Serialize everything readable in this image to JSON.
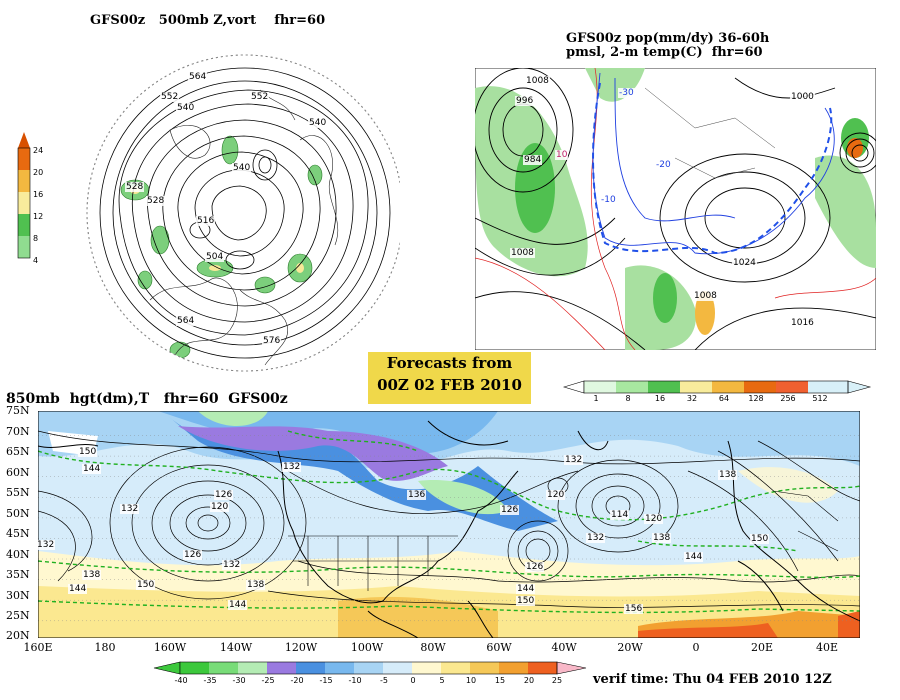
{
  "panel_tl": {
    "title": "GFS00z   500mb Z,vort    fhr=60",
    "contour_labels": [
      "564",
      "552",
      "540",
      "516",
      "528",
      "540",
      "552",
      "564",
      "576",
      "504",
      "540",
      "528"
    ],
    "colorbar": {
      "ticks": [
        "24",
        "20",
        "16",
        "12",
        "8",
        "4"
      ],
      "colors": [
        "#e86a10",
        "#f3b840",
        "#f8ec9c",
        "#50c050",
        "#90dc90",
        "#c8f0c8"
      ]
    }
  },
  "panel_tr": {
    "title_line1": "GFS00z pop(mm/dy) 36-60h",
    "title_line2": "pmsl, 2-m temp(C)  fhr=60",
    "isobar_labels": [
      "1008",
      "996",
      "984",
      "1008",
      "1008",
      "1024",
      "1000",
      "1016"
    ],
    "temp_labels": [
      "-30",
      "-20",
      "-10",
      "10"
    ],
    "colorbar": {
      "ticks": [
        "1",
        "8",
        "16",
        "32",
        "64",
        "128",
        "256",
        "512"
      ],
      "colors": [
        "#e0f8e0",
        "#a8e8a0",
        "#50c050",
        "#f8ec9c",
        "#f3b840",
        "#e86a10",
        "#f06030",
        "#d8f0f8"
      ]
    }
  },
  "info_box": {
    "line1": "Forecasts from",
    "line2": "00Z  02  FEB  2010"
  },
  "panel_bottom": {
    "title": "850mb  hgt(dm),T   fhr=60  GFS00z",
    "lat_labels": [
      "75N",
      "70N",
      "65N",
      "60N",
      "55N",
      "50N",
      "45N",
      "40N",
      "35N",
      "30N",
      "25N",
      "20N"
    ],
    "lon_labels": [
      "160E",
      "180",
      "160W",
      "140W",
      "120W",
      "100W",
      "80W",
      "60W",
      "40W",
      "20W",
      "0",
      "20E",
      "40E"
    ],
    "height_labels": [
      "150",
      "144",
      "132",
      "126",
      "120",
      "126",
      "132",
      "138",
      "144",
      "150",
      "132",
      "138",
      "144",
      "136",
      "132",
      "126",
      "120",
      "114",
      "120",
      "126",
      "132",
      "138",
      "144",
      "150",
      "156",
      "144",
      "132",
      "150",
      "138"
    ],
    "colorbar": {
      "ticks": [
        "-40",
        "-35",
        "-30",
        "-25",
        "-20",
        "-15",
        "-10",
        "-5",
        "0",
        "5",
        "10",
        "15",
        "20",
        "25"
      ],
      "colors": [
        "#3cc83c",
        "#78dc78",
        "#b4ecb4",
        "#9a7ae0",
        "#4a90e0",
        "#78b8ee",
        "#a8d4f4",
        "#d6ecfa",
        "#fff8d0",
        "#fbe890",
        "#f5c858",
        "#f2a030",
        "#ee6020"
      ]
    }
  },
  "verif_time": "verif time: Thu 04 FEB 2010 12Z"
}
